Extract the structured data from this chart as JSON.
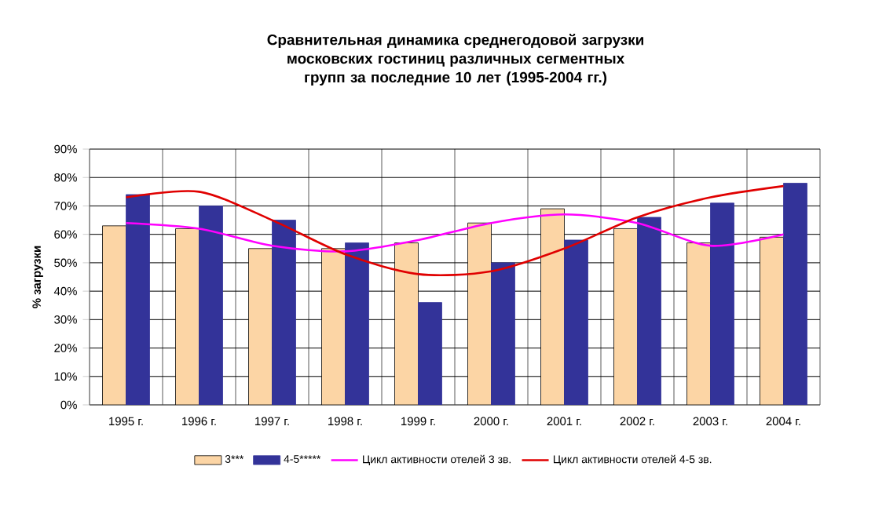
{
  "chart_data": {
    "type": "bar",
    "title": "Сравнительная динамика среднегодовой загрузки московских гостиниц различных сегментных групп за последние 10 лет (1995-2004 гг.)",
    "ylabel": "% загрузки",
    "categories": [
      "1995 г.",
      "1996 г.",
      "1997 г.",
      "1998 г.",
      "1999 г.",
      "2000 г.",
      "2001 г.",
      "2002 г.",
      "2003 г.",
      "2004 г."
    ],
    "series": [
      {
        "name": "3***",
        "color": "#fcd5a5",
        "values": [
          63,
          62,
          55,
          55,
          57,
          64,
          69,
          62,
          57,
          59
        ]
      },
      {
        "name": "4-5*****",
        "color": "#333399",
        "values": [
          74,
          70,
          65,
          57,
          36,
          50,
          58,
          66,
          71,
          78
        ]
      },
      {
        "name": "Цикл активности отелей 3 зв.",
        "type": "line",
        "color": "#ff00ff",
        "values": [
          64,
          62,
          56,
          54,
          58,
          64,
          67,
          64,
          56,
          60
        ]
      },
      {
        "name": "Цикл активности отелей 4-5 зв.",
        "type": "line",
        "color": "#e00000",
        "values": [
          73,
          75,
          65,
          53,
          46,
          47,
          55,
          66,
          73,
          77
        ]
      }
    ],
    "ylim": [
      0,
      90
    ],
    "yticks": [
      {
        "value": 0,
        "label": "0%"
      },
      {
        "value": 10,
        "label": "10%"
      },
      {
        "value": 20,
        "label": "20%"
      },
      {
        "value": 30,
        "label": "30%"
      },
      {
        "value": 40,
        "label": "40%"
      },
      {
        "value": 50,
        "label": "50%"
      },
      {
        "value": 60,
        "label": "60%"
      },
      {
        "value": 70,
        "label": "70%"
      },
      {
        "value": 80,
        "label": "80%"
      },
      {
        "value": 90,
        "label": "90%"
      }
    ],
    "grid": true,
    "legend": "bottom",
    "line_style": "solid"
  }
}
